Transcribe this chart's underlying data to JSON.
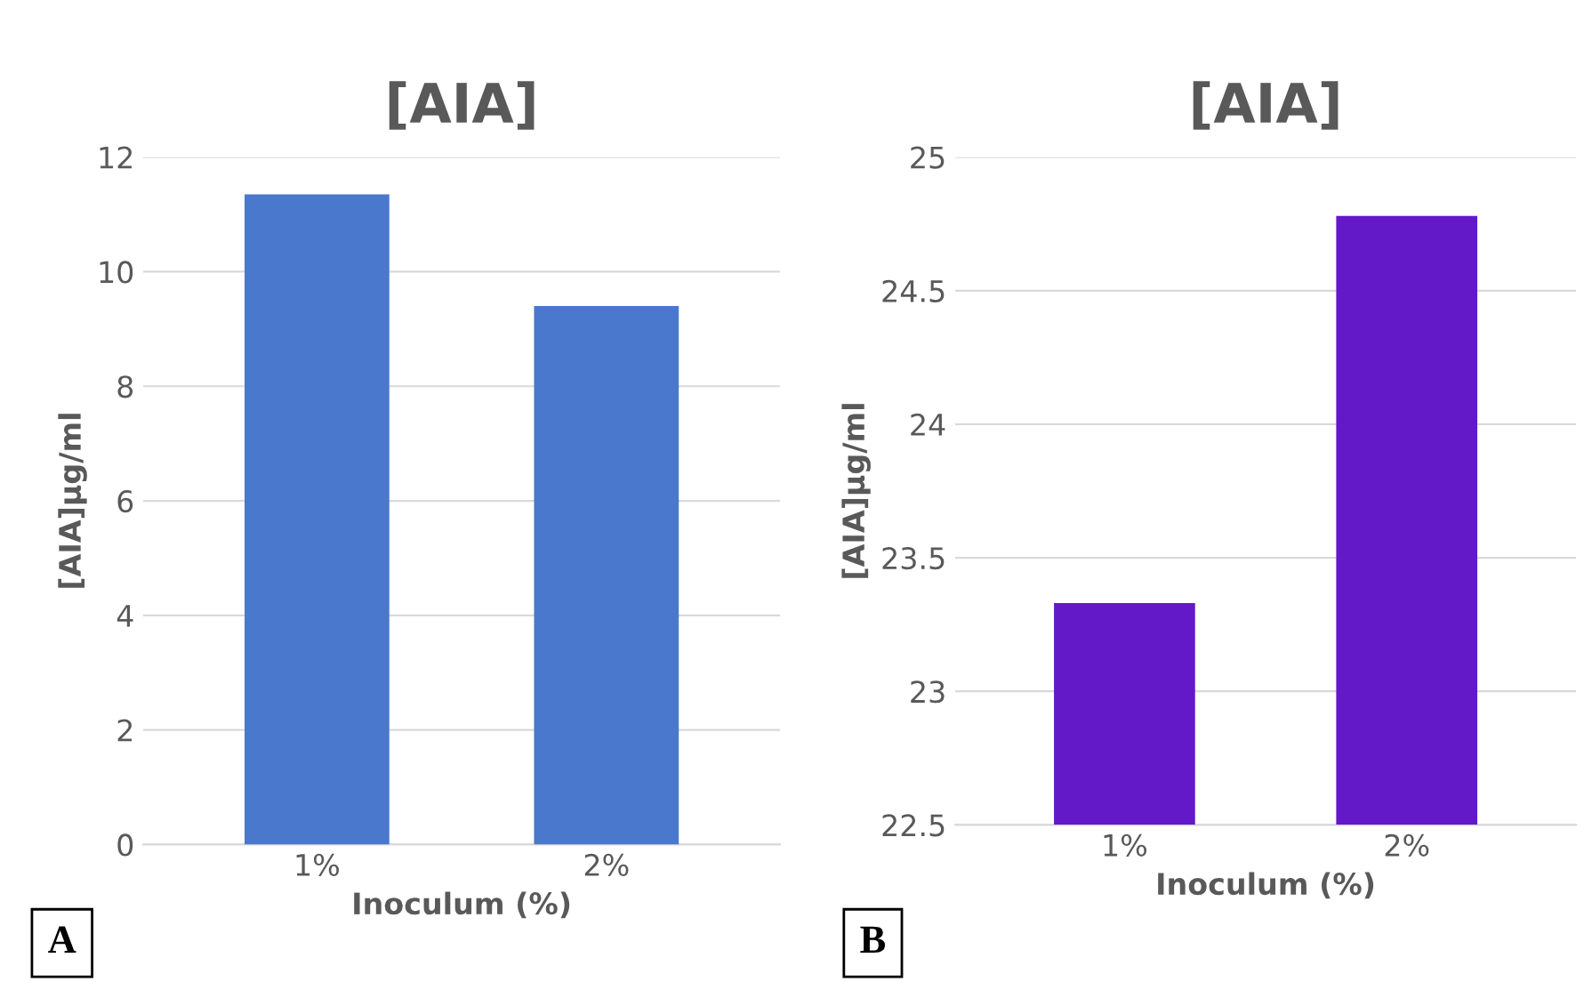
{
  "chart_data": [
    {
      "type": "bar",
      "title": "[AIA]",
      "xlabel": "Inoculum (%)",
      "ylabel": "[AIA]µg/ml",
      "categories": [
        "1%",
        "2%"
      ],
      "values": [
        11.35,
        9.4
      ],
      "color": "#4a78cc",
      "ylim": [
        0,
        12
      ],
      "yticks": [
        0,
        2,
        4,
        6,
        8,
        10,
        12
      ],
      "grid": "y",
      "annotations": [
        "A"
      ]
    },
    {
      "type": "bar",
      "title": "[AIA]",
      "xlabel": "Inoculum (%)",
      "ylabel": "[AIA]µg/ml",
      "categories": [
        "1%",
        "2%"
      ],
      "values": [
        23.33,
        24.78
      ],
      "color": "#6419c8",
      "ylim": [
        22.5,
        25
      ],
      "yticks": [
        22.5,
        23,
        23.5,
        24,
        24.5,
        25
      ],
      "grid": "y",
      "annotations": [
        "B"
      ]
    }
  ]
}
